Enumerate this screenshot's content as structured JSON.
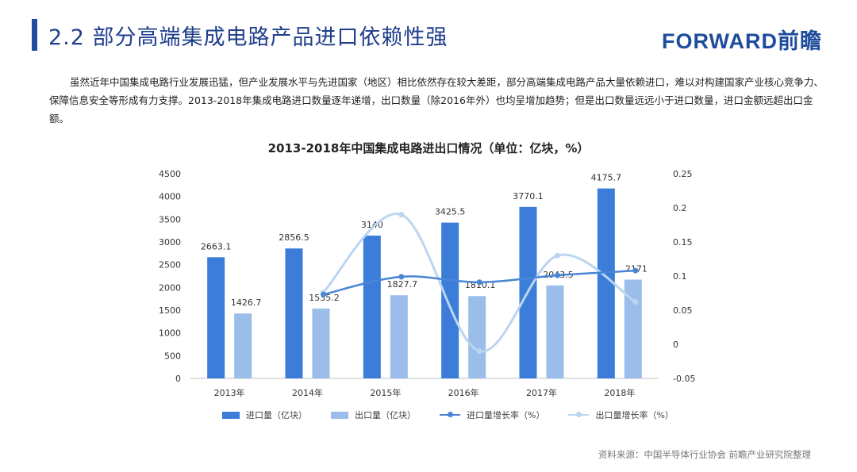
{
  "header": {
    "title": "2.2 部分高端集成电路产品进口依赖性强",
    "logo": "FORWARD前瞻"
  },
  "paragraph": "虽然近年中国集成电路行业发展迅猛，但产业发展水平与先进国家（地区）相比依然存在较大差距，部分高端集成电路产品大量依赖进口，难以对构建国家产业核心竞争力、保障信息安全等形成有力支撑。2013-2018年集成电路进口数量逐年递增，出口数量（除2016年外）也均呈增加趋势；但是出口数量远远小于进口数量，进口金额远超出口金额。",
  "source": "资料来源：中国半导体行业协会 前瞻产业研究院整理",
  "colors": {
    "import_bar": "#3b7dd8",
    "export_bar": "#9bbde9",
    "import_line": "#4a86d6",
    "export_line": "#bcd5f0"
  },
  "chart_data": {
    "type": "bar",
    "title": "2013-2018年中国集成电路进出口情况（单位：亿块，%）",
    "categories": [
      "2013年",
      "2014年",
      "2015年",
      "2016年",
      "2017年",
      "2018年"
    ],
    "series": [
      {
        "name": "进口量（亿块）",
        "type": "bar",
        "axis": "left",
        "values": [
          2663.1,
          2856.5,
          3140,
          3425.5,
          3770.1,
          4175.7
        ],
        "labels": [
          "2663.1",
          "2856.5",
          "3140",
          "3425.5",
          "3770.1",
          "4175.7"
        ]
      },
      {
        "name": "出口量（亿块）",
        "type": "bar",
        "axis": "left",
        "values": [
          1426.7,
          1535.2,
          1827.7,
          1810.1,
          2043.5,
          2171
        ],
        "labels": [
          "1426.7",
          "1535.2",
          "1827.7",
          "1810.1",
          "2043.5",
          "2171"
        ]
      },
      {
        "name": "进口量增长率（%）",
        "type": "line",
        "axis": "right",
        "x": [
          2014,
          2015,
          2016,
          2017,
          2018
        ],
        "values": [
          0.073,
          0.099,
          0.091,
          0.101,
          0.108
        ]
      },
      {
        "name": "出口量增长率（%）",
        "type": "line",
        "axis": "right",
        "x": [
          2014,
          2015,
          2016,
          2017,
          2018
        ],
        "values": [
          0.076,
          0.19,
          -0.01,
          0.13,
          0.062
        ]
      }
    ],
    "y_left": {
      "min": 0,
      "max": 4500,
      "ticks": [
        "0",
        "500",
        "1000",
        "1500",
        "2000",
        "2500",
        "3000",
        "3500",
        "4000",
        "4500"
      ]
    },
    "y_right": {
      "min": -0.05,
      "max": 0.25,
      "ticks": [
        "-0.05",
        "0",
        "0.05",
        "0.1",
        "0.15",
        "0.2",
        "0.25"
      ]
    },
    "legend_position": "bottom"
  }
}
